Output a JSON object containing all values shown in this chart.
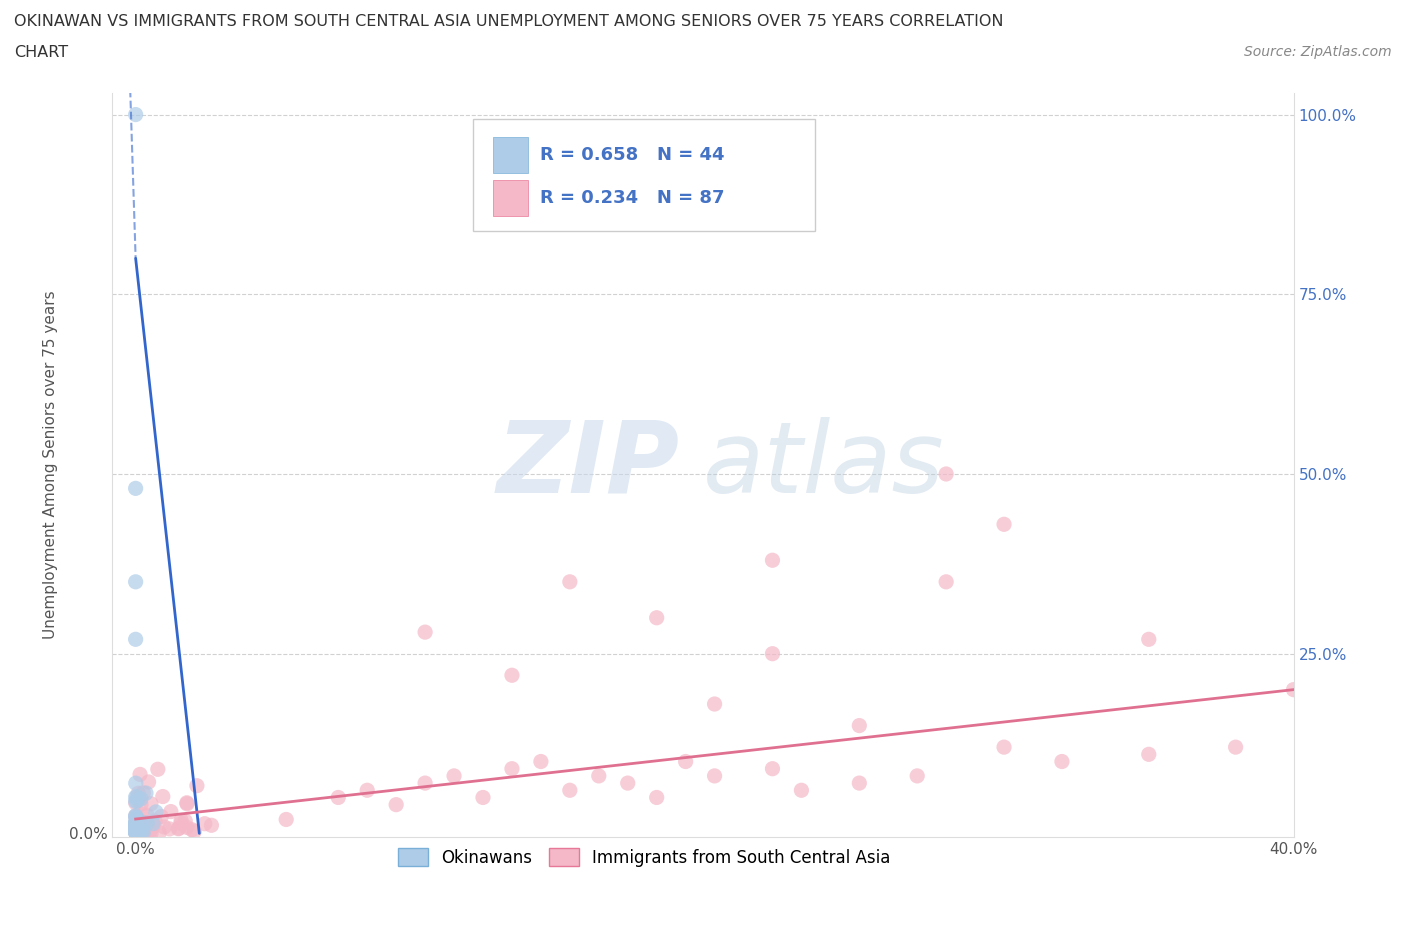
{
  "title_line1": "OKINAWAN VS IMMIGRANTS FROM SOUTH CENTRAL ASIA UNEMPLOYMENT AMONG SENIORS OVER 75 YEARS CORRELATION",
  "title_line2": "CHART",
  "source_text": "Source: ZipAtlas.com",
  "ylabel": "Unemployment Among Seniors over 75 years",
  "xmin": 0.0,
  "xmax": 0.4,
  "ymin": 0.0,
  "ymax": 1.0,
  "okinawan_fill_color": "#aecce8",
  "okinawan_edge_color": "#7ab0d8",
  "immigrant_fill_color": "#f4b8c8",
  "immigrant_edge_color": "#e87898",
  "okinawan_trend_color": "#3366cc",
  "immigrant_trend_color": "#e07090",
  "okinawan_R": 0.658,
  "okinawan_N": 44,
  "immigrant_R": 0.234,
  "immigrant_N": 87,
  "legend_label_okinawan": "Okinawans",
  "legend_label_immigrant": "Immigrants from South Central Asia",
  "watermark_ZIP": "ZIP",
  "watermark_atlas": "atlas",
  "grid_color": "#cccccc",
  "background_color": "#ffffff",
  "info_text_color": "#4472c4",
  "title_color": "#333333",
  "axis_label_color": "#4472c4",
  "tick_color": "#555555"
}
